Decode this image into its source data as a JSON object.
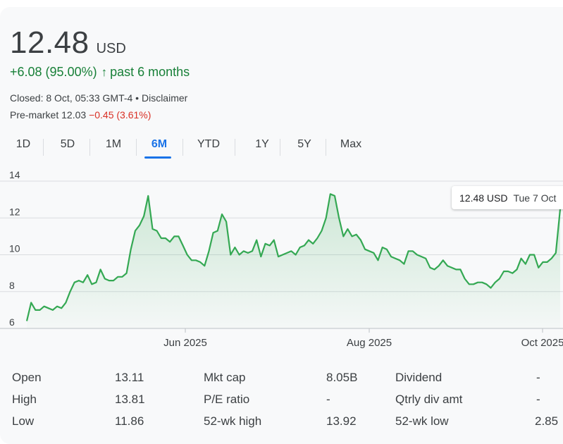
{
  "quote": {
    "price": "12.48",
    "currency": "USD",
    "change": "+6.08 (95.00%)",
    "change_arrow": "↑",
    "period": "past 6 months",
    "closed": "Closed: 8 Oct, 05:33 GMT-4 • Disclaimer",
    "premarket_label": "Pre-market 12.03",
    "premarket_change": "−0.45 (3.61%)"
  },
  "tabs": [
    "1D",
    "5D",
    "1M",
    "6M",
    "YTD",
    "1Y",
    "5Y",
    "Max"
  ],
  "active_tab": "6M",
  "tooltip": {
    "value": "12.48 USD",
    "date": "Tue 7 Oct"
  },
  "colors": {
    "up": "#188038",
    "down": "#d93025",
    "line": "#34a853",
    "accent": "#1a73e8"
  },
  "chart_data": {
    "type": "area",
    "y_ticks": [
      "6",
      "8",
      "10",
      "12",
      "14"
    ],
    "x_ticks": [
      "Jun 2025",
      "Aug 2025",
      "Oct 2025"
    ],
    "ylim": [
      6,
      14
    ],
    "grid": true,
    "values": [
      6.4,
      7.4,
      7.0,
      7.0,
      7.2,
      7.1,
      7.0,
      7.2,
      7.1,
      7.4,
      8.0,
      8.5,
      8.6,
      8.5,
      8.9,
      8.4,
      8.5,
      9.2,
      8.7,
      8.6,
      8.6,
      8.8,
      8.8,
      9.0,
      10.3,
      11.3,
      11.6,
      12.1,
      13.2,
      11.4,
      11.3,
      10.9,
      10.9,
      10.7,
      11.0,
      11.0,
      10.5,
      10.0,
      9.7,
      9.7,
      9.6,
      9.4,
      10.2,
      11.2,
      11.3,
      12.2,
      11.8,
      10.0,
      10.4,
      10.0,
      10.2,
      10.1,
      10.2,
      10.8,
      9.9,
      10.6,
      10.5,
      10.8,
      9.9,
      10.0,
      10.1,
      10.2,
      10.0,
      10.4,
      10.5,
      10.8,
      10.6,
      10.9,
      11.3,
      12.0,
      13.3,
      13.2,
      12.0,
      11.0,
      11.4,
      11.0,
      11.1,
      10.8,
      10.3,
      10.2,
      10.1,
      9.7,
      10.4,
      10.3,
      9.9,
      9.8,
      9.7,
      9.5,
      10.2,
      10.2,
      10.0,
      9.9,
      9.8,
      9.3,
      9.2,
      9.4,
      9.7,
      9.4,
      9.3,
      9.2,
      9.2,
      8.7,
      8.4,
      8.4,
      8.5,
      8.5,
      8.4,
      8.2,
      8.5,
      8.7,
      9.1,
      9.1,
      9.0,
      9.2,
      9.8,
      9.5,
      10.0,
      10.0,
      9.3,
      9.6,
      9.6,
      9.8,
      10.1,
      12.48
    ]
  },
  "stats": [
    {
      "label": "Open",
      "value": "13.11"
    },
    {
      "label": "High",
      "value": "13.81"
    },
    {
      "label": "Low",
      "value": "11.86"
    },
    {
      "label": "Mkt cap",
      "value": "8.05B"
    },
    {
      "label": "P/E ratio",
      "value": "-"
    },
    {
      "label": "52-wk high",
      "value": "13.92"
    },
    {
      "label": "Dividend",
      "value": "-"
    },
    {
      "label": "Qtrly div amt",
      "value": "-"
    },
    {
      "label": "52-wk low",
      "value": "2.85"
    }
  ]
}
